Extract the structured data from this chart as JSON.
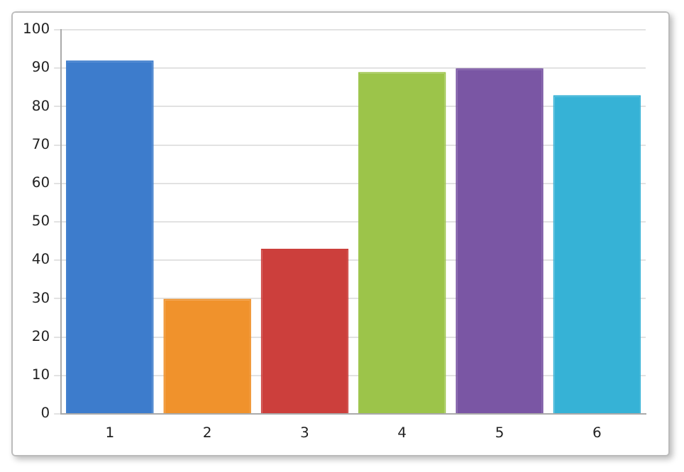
{
  "chart_data": {
    "type": "bar",
    "categories": [
      "1",
      "2",
      "3",
      "4",
      "5",
      "6"
    ],
    "values": [
      92,
      30,
      43,
      89,
      90,
      83
    ],
    "colors": [
      "#3d7ccc",
      "#f0922c",
      "#cc3f3c",
      "#9cc44a",
      "#7a56a4",
      "#36b2d6"
    ],
    "ylim": [
      0,
      100
    ],
    "yticks": [
      0,
      10,
      20,
      30,
      40,
      50,
      60,
      70,
      80,
      90,
      100
    ],
    "grid": "y",
    "legend": false
  }
}
